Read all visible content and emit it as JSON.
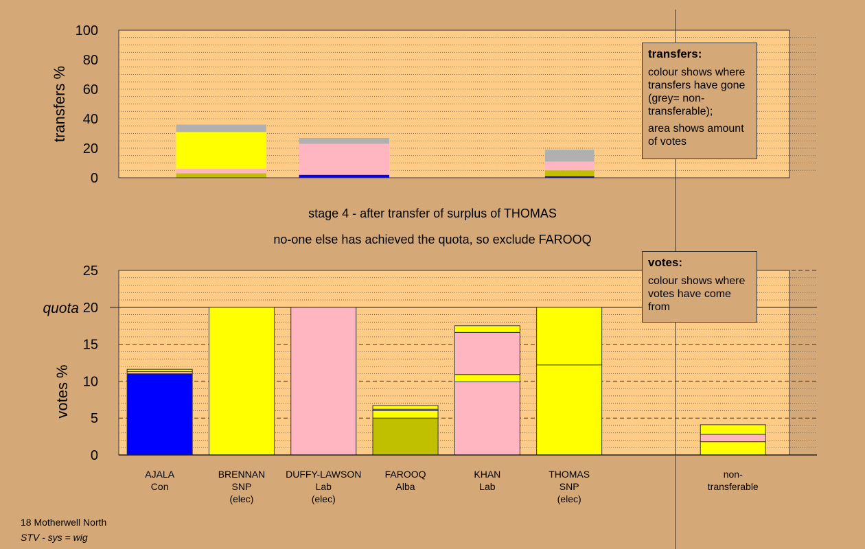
{
  "chart_data": [
    {
      "type": "bar",
      "stacked": true,
      "ylabel": "transfers %",
      "ylim": [
        0,
        100
      ],
      "yticks": [
        0,
        20,
        40,
        60,
        80,
        100
      ],
      "grid": true,
      "bars": [
        {
          "x_center": 1.25,
          "width": 1.1,
          "segments": [
            {
              "value": 3,
              "color": "#c0c000"
            },
            {
              "value": 3,
              "color": "#ffb6c1"
            },
            {
              "value": 25,
              "color": "#ffff00"
            },
            {
              "value": 5,
              "color": "#b0b0b0"
            }
          ]
        },
        {
          "x_center": 2.75,
          "width": 1.1,
          "segments": [
            {
              "value": 2,
              "color": "#0000ff"
            },
            {
              "value": 21,
              "color": "#ffb6c1"
            },
            {
              "value": 4,
              "color": "#b0b0b0"
            }
          ]
        },
        {
          "x_center": 5.5,
          "width": 0.6,
          "segments": [
            {
              "value": 1,
              "color": "#0000ff"
            },
            {
              "value": 4,
              "color": "#c0c000"
            },
            {
              "value": 6,
              "color": "#ffb6c1"
            },
            {
              "value": 8,
              "color": "#b0b0b0"
            }
          ]
        }
      ]
    },
    {
      "type": "bar",
      "stacked": true,
      "ylabel": "votes %",
      "ylim": [
        0,
        25
      ],
      "yticks": [
        0,
        5,
        10,
        15,
        20,
        25
      ],
      "quota": 20,
      "quota_label": "quota",
      "categories": [
        {
          "name": "AJALA",
          "party": "Con",
          "note": ""
        },
        {
          "name": "BRENNAN",
          "party": "SNP",
          "note": "(elec)"
        },
        {
          "name": "DUFFY-LAWSON",
          "party": "Lab",
          "note": "(elec)"
        },
        {
          "name": "FAROOQ",
          "party": "Alba",
          "note": ""
        },
        {
          "name": "KHAN",
          "party": "Lab",
          "note": ""
        },
        {
          "name": "THOMAS",
          "party": "SNP",
          "note": "(elec)"
        },
        {
          "name": "",
          "party": "",
          "note": ""
        },
        {
          "name": "non-",
          "party": "transferable",
          "note": ""
        }
      ],
      "series_values": [
        [
          {
            "value": 11.0,
            "color": "#0000ff"
          },
          {
            "value": 0.3,
            "color": "#ffb6c1"
          },
          {
            "value": 0.3,
            "color": "#ffff00"
          }
        ],
        [
          {
            "value": 20.0,
            "color": "#ffff00"
          }
        ],
        [
          {
            "value": 20.0,
            "color": "#ffb6c1"
          }
        ],
        [
          {
            "value": 5.0,
            "color": "#c0c000"
          },
          {
            "value": 1.0,
            "color": "#ffff00"
          },
          {
            "value": 0.2,
            "color": "#ffb6c1"
          },
          {
            "value": 0.5,
            "color": "#ffff00"
          }
        ],
        [
          {
            "value": 9.9,
            "color": "#ffb6c1"
          },
          {
            "value": 1.0,
            "color": "#ffff00"
          },
          {
            "value": 5.7,
            "color": "#ffb6c1"
          },
          {
            "value": 0.9,
            "color": "#ffff00"
          }
        ],
        [
          {
            "value": 12.2,
            "color": "#ffff00"
          },
          {
            "value": 7.8,
            "color": "#ffff00"
          }
        ],
        [],
        [
          {
            "value": 1.8,
            "color": "#ffff00"
          },
          {
            "value": 1.0,
            "color": "#ffb6c1"
          },
          {
            "value": 1.3,
            "color": "#ffff00"
          }
        ]
      ]
    }
  ],
  "stage_title": "stage 4 - after transfer of surplus of THOMAS",
  "stage_subtitle": "no-one else has achieved the quota, so exclude FAROOQ",
  "legend_transfers": {
    "title": "transfers:",
    "text1": "colour shows where transfers have gone (grey= non-transferable);",
    "text2": "area shows amount of votes"
  },
  "legend_votes": {
    "title": "votes:",
    "text1": "colour shows where votes have come from"
  },
  "footer": {
    "line1": "18 Motherwell North",
    "line2": "STV - sys = wig"
  }
}
